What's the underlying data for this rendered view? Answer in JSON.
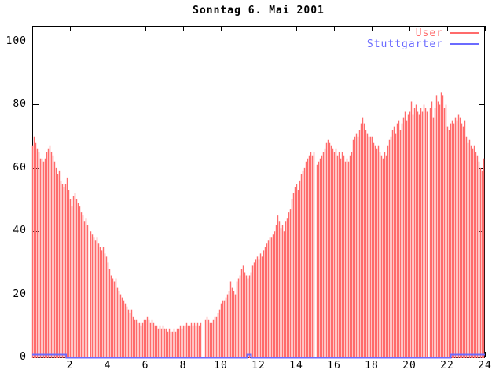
{
  "title": "Sonntag 6. Mai 2001",
  "colors": {
    "user_series": "#ff6b6b",
    "stuttgarter_series": "#6b6bff",
    "axis": "#000000",
    "background": "#ffffff"
  },
  "chart_data": {
    "type": "bar",
    "title": "Sonntag 6. Mai 2001",
    "xlabel": "",
    "ylabel": "",
    "xlim": [
      0,
      24
    ],
    "ylim": [
      0,
      105
    ],
    "xticks": [
      2,
      4,
      6,
      8,
      10,
      12,
      14,
      16,
      18,
      20,
      22,
      24
    ],
    "yticks": [
      0,
      20,
      40,
      60,
      80,
      100
    ],
    "grid": false,
    "legend_position": "top-right",
    "x_unit": "hour of day",
    "sample_interval_minutes": 5,
    "series": [
      {
        "name": "User",
        "style": "impulses",
        "color": "#ff6b6b",
        "note": "5-minute samples over 24 h; zeros are missing samples (gaps at 03:00, 09:00-09:05, 15:00, 21:00)",
        "values": [
          67,
          70,
          68,
          66,
          65,
          63,
          63,
          62,
          63,
          65,
          66,
          67,
          65,
          64,
          62,
          60,
          58,
          59,
          56,
          55,
          54,
          55,
          57,
          53,
          50,
          48,
          51,
          52,
          50,
          49,
          48,
          46,
          45,
          43,
          44,
          42,
          0,
          40,
          39,
          38,
          37,
          38,
          36,
          35,
          34,
          35,
          33,
          32,
          30,
          28,
          26,
          25,
          24,
          25,
          22,
          21,
          20,
          19,
          18,
          17,
          16,
          15,
          14,
          15,
          13,
          12,
          12,
          11,
          11,
          10,
          11,
          12,
          12,
          13,
          12,
          11,
          12,
          11,
          10,
          10,
          9,
          10,
          9,
          10,
          9,
          9,
          8,
          9,
          8,
          8,
          9,
          8,
          9,
          9,
          10,
          9,
          10,
          10,
          11,
          10,
          10,
          11,
          10,
          11,
          10,
          11,
          10,
          11,
          0,
          0,
          12,
          13,
          12,
          11,
          11,
          12,
          13,
          13,
          14,
          15,
          17,
          18,
          18,
          19,
          20,
          21,
          24,
          22,
          21,
          20,
          24,
          25,
          26,
          28,
          29,
          27,
          26,
          25,
          26,
          27,
          29,
          30,
          31,
          32,
          31,
          33,
          32,
          34,
          35,
          36,
          37,
          38,
          38,
          39,
          40,
          42,
          45,
          43,
          41,
          42,
          40,
          43,
          44,
          46,
          47,
          50,
          52,
          54,
          55,
          53,
          56,
          58,
          59,
          60,
          62,
          63,
          64,
          65,
          64,
          65,
          0,
          61,
          62,
          63,
          64,
          65,
          66,
          68,
          69,
          68,
          67,
          66,
          65,
          66,
          64,
          65,
          63,
          65,
          64,
          62,
          63,
          62,
          64,
          65,
          69,
          70,
          71,
          70,
          72,
          74,
          76,
          74,
          72,
          71,
          70,
          70,
          70,
          68,
          67,
          66,
          67,
          65,
          64,
          63,
          65,
          64,
          67,
          69,
          70,
          72,
          73,
          71,
          74,
          75,
          72,
          74,
          76,
          78,
          75,
          77,
          78,
          81,
          77,
          79,
          80,
          78,
          77,
          79,
          78,
          80,
          79,
          78,
          0,
          79,
          81,
          76,
          79,
          83,
          81,
          80,
          84,
          83,
          79,
          80,
          73,
          72,
          74,
          75,
          74,
          76,
          75,
          77,
          76,
          74,
          73,
          75,
          70,
          68,
          69,
          67,
          66,
          67,
          65,
          64,
          62,
          60,
          59,
          63
        ]
      },
      {
        "name": "Stuttgarter",
        "style": "steps",
        "color": "#6b6bff",
        "baseline": 0,
        "segments": [
          {
            "from_hour": 0,
            "to_hour": 1.8,
            "value": 1
          },
          {
            "from_hour": 11.4,
            "to_hour": 11.6,
            "value": 1
          },
          {
            "from_hour": 22.2,
            "to_hour": 24,
            "value": 1
          }
        ]
      }
    ]
  }
}
